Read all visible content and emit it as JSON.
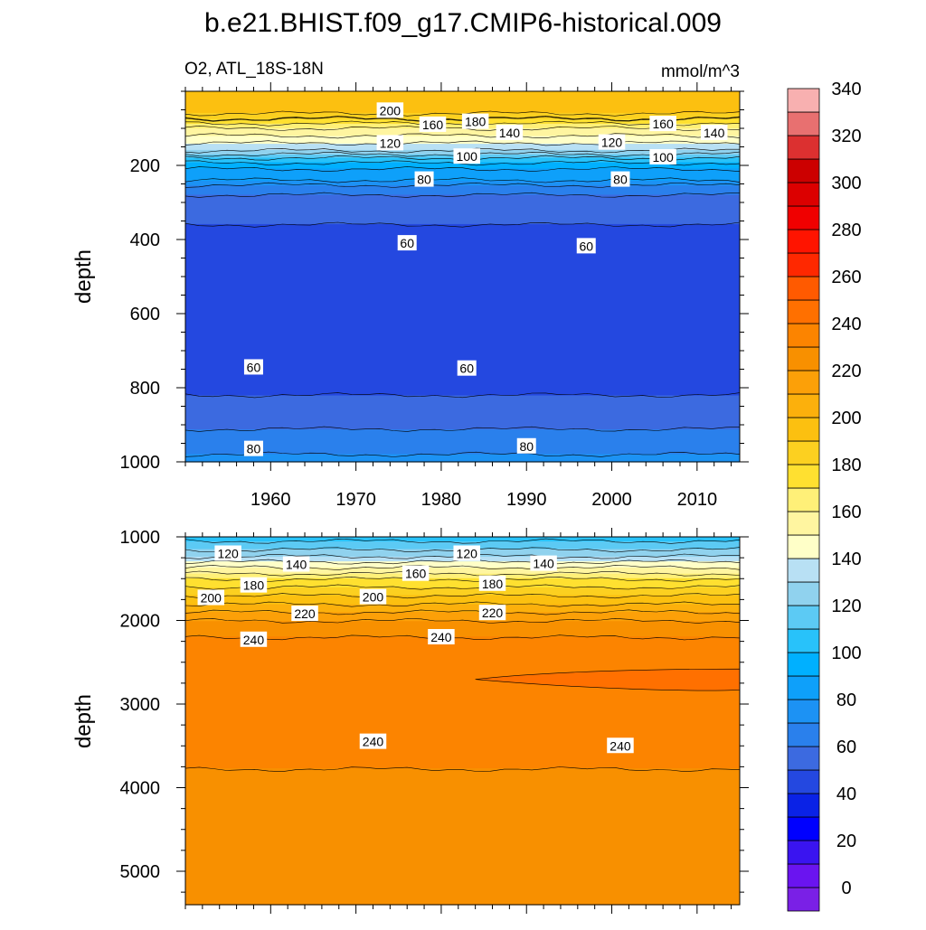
{
  "figure": {
    "title": "b.e21.BHIST.f09_g17.CMIP6-historical.009",
    "left_subtitle": "O2, ATL_18S-18N",
    "right_subtitle": "mmol/m^3"
  },
  "colors": {
    "palette": [
      "#7a20e6",
      "#6a14f0",
      "#3a14f0",
      "#0000ff",
      "#0a22e6",
      "#2448e0",
      "#3c6ae0",
      "#2a80ec",
      "#1c92f4",
      "#0ea0fa",
      "#00b0ff",
      "#28c2fa",
      "#5ccaf4",
      "#90d2ee",
      "#b8e0f4",
      "#ffffc8",
      "#fff5a0",
      "#fff078",
      "#ffe030",
      "#fcd020",
      "#fcc010",
      "#fcb00c",
      "#fca008",
      "#f89000",
      "#fc8400",
      "#ff7000",
      "#ff5a00",
      "#ff2800",
      "#ff1400",
      "#f00000",
      "#dc0000",
      "#cc0000",
      "#dc3030",
      "#e87070",
      "#f8b0b0"
    ]
  },
  "chart_data": [
    {
      "type": "heatmap",
      "subtype": "filled-contour",
      "variable": "O2",
      "region": "ATL_18S-18N",
      "units": "mmol/m^3",
      "ylabel": "depth",
      "y_reversed": true,
      "xlim": [
        1950,
        2015
      ],
      "ylim": [
        0,
        1000
      ],
      "x_ticks": [
        1960,
        1970,
        1980,
        1990,
        2000,
        2010
      ],
      "y_ticks": [
        200,
        400,
        600,
        800,
        1000
      ],
      "contour_interval": 10,
      "profile": [
        [
          0,
          205
        ],
        [
          40,
          205
        ],
        [
          60,
          200
        ],
        [
          80,
          185
        ],
        [
          100,
          170
        ],
        [
          120,
          160
        ],
        [
          140,
          150
        ],
        [
          160,
          140
        ],
        [
          180,
          120
        ],
        [
          200,
          105
        ],
        [
          220,
          95
        ],
        [
          240,
          90
        ],
        [
          260,
          75
        ],
        [
          280,
          70
        ],
        [
          300,
          65
        ],
        [
          420,
          55
        ],
        [
          600,
          52
        ],
        [
          760,
          55
        ],
        [
          880,
          65
        ],
        [
          960,
          78
        ],
        [
          1000,
          82
        ]
      ],
      "contour_labels": [
        {
          "value": "200",
          "x": 1974,
          "y": 52
        },
        {
          "value": "160",
          "x": 1979,
          "y": 90
        },
        {
          "value": "180",
          "x": 1984,
          "y": 82
        },
        {
          "value": "140",
          "x": 1988,
          "y": 112
        },
        {
          "value": "160",
          "x": 2006,
          "y": 88
        },
        {
          "value": "140",
          "x": 2012,
          "y": 112
        },
        {
          "value": "120",
          "x": 1974,
          "y": 140
        },
        {
          "value": "120",
          "x": 2000,
          "y": 138
        },
        {
          "value": "100",
          "x": 1983,
          "y": 176
        },
        {
          "value": "100",
          "x": 2006,
          "y": 178
        },
        {
          "value": "80",
          "x": 1978,
          "y": 238
        },
        {
          "value": "80",
          "x": 2001,
          "y": 238
        },
        {
          "value": "60",
          "x": 1976,
          "y": 410
        },
        {
          "value": "60",
          "x": 1997,
          "y": 418
        },
        {
          "value": "60",
          "x": 1958,
          "y": 745
        },
        {
          "value": "60",
          "x": 1983,
          "y": 748
        },
        {
          "value": "80",
          "x": 1958,
          "y": 965
        },
        {
          "value": "80",
          "x": 1990,
          "y": 958
        }
      ]
    },
    {
      "type": "heatmap",
      "subtype": "filled-contour",
      "variable": "O2",
      "region": "ATL_18S-18N",
      "units": "mmol/m^3",
      "ylabel": "depth",
      "y_reversed": true,
      "xlim": [
        1950,
        2015
      ],
      "ylim": [
        1000,
        5400
      ],
      "x_ticks": [
        1960,
        1970,
        1980,
        1990,
        2000,
        2010
      ],
      "y_ticks": [
        1000,
        2000,
        3000,
        4000,
        5000
      ],
      "contour_interval": 10,
      "profile": [
        [
          1000,
          115
        ],
        [
          1100,
          125
        ],
        [
          1200,
          135
        ],
        [
          1300,
          150
        ],
        [
          1400,
          165
        ],
        [
          1500,
          180
        ],
        [
          1600,
          190
        ],
        [
          1700,
          200
        ],
        [
          1800,
          210
        ],
        [
          1900,
          220
        ],
        [
          2000,
          230
        ],
        [
          2200,
          240
        ],
        [
          3500,
          245
        ],
        [
          4050,
          235
        ],
        [
          5400,
          232
        ]
      ],
      "anomaly_region": {
        "value_min": 250,
        "x_range": [
          1984,
          2015
        ],
        "depth_range": [
          2580,
          2830
        ]
      },
      "contour_labels": [
        {
          "value": "120",
          "x": 1955,
          "y": 1200
        },
        {
          "value": "140",
          "x": 1963,
          "y": 1330
        },
        {
          "value": "120",
          "x": 1983,
          "y": 1200
        },
        {
          "value": "140",
          "x": 1992,
          "y": 1320
        },
        {
          "value": "160",
          "x": 1977,
          "y": 1440
        },
        {
          "value": "180",
          "x": 1958,
          "y": 1580
        },
        {
          "value": "180",
          "x": 1986,
          "y": 1560
        },
        {
          "value": "200",
          "x": 1953,
          "y": 1730
        },
        {
          "value": "200",
          "x": 1972,
          "y": 1720
        },
        {
          "value": "220",
          "x": 1964,
          "y": 1920
        },
        {
          "value": "220",
          "x": 1986,
          "y": 1910
        },
        {
          "value": "240",
          "x": 1958,
          "y": 2230
        },
        {
          "value": "240",
          "x": 1980,
          "y": 2200
        },
        {
          "value": "240",
          "x": 1972,
          "y": 3450
        },
        {
          "value": "240",
          "x": 2001,
          "y": 3500
        }
      ]
    }
  ],
  "colorbar": {
    "levels_min": 0,
    "levels_max": 350,
    "interval": 10,
    "labels": [
      "0",
      "20",
      "40",
      "60",
      "80",
      "100",
      "120",
      "140",
      "160",
      "180",
      "200",
      "220",
      "240",
      "260",
      "280",
      "300",
      "320",
      "340"
    ]
  }
}
